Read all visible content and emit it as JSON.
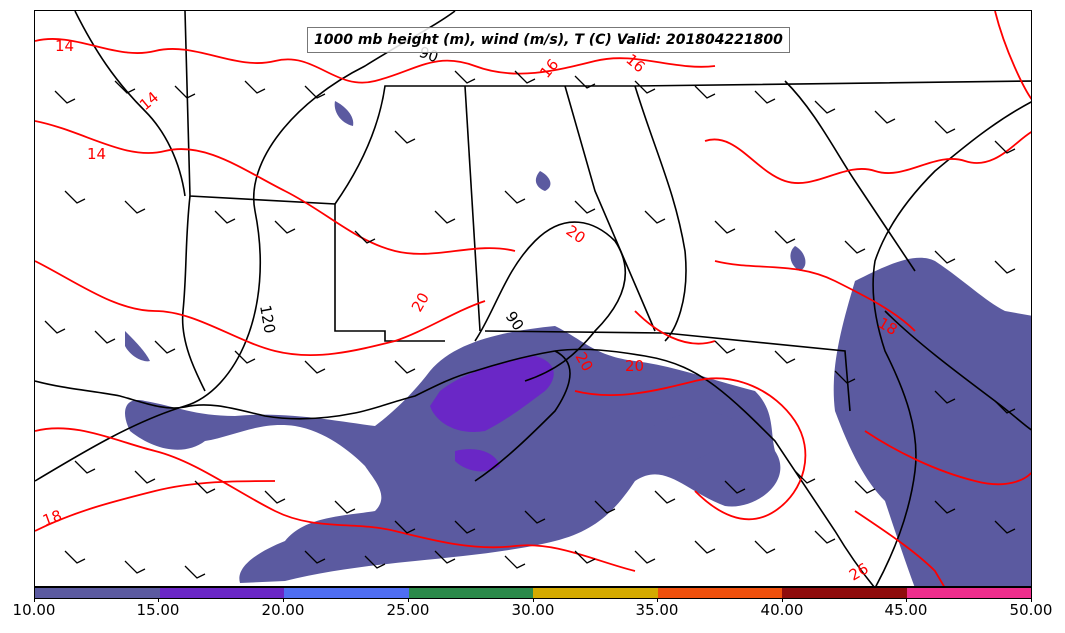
{
  "title": "1000 mb height (m), wind (m/s), T (C) Valid: 201804221800",
  "colorbar": {
    "ticks": [
      "10.00",
      "15.00",
      "20.00",
      "25.00",
      "30.00",
      "35.00",
      "40.00",
      "45.00",
      "50.00"
    ],
    "colors": [
      "#5b5aa0",
      "#6a27c6",
      "#4f6ef2",
      "#2b8a4a",
      "#d4aa00",
      "#f0500c",
      "#8f0c0c",
      "#ee2d8c"
    ]
  },
  "contour_labels": {
    "temperature": [
      "14",
      "14",
      "14",
      "16",
      "16",
      "20",
      "20",
      "20",
      "18",
      "18",
      "26",
      "20"
    ],
    "height": [
      "90",
      "90",
      "120"
    ]
  },
  "colors": {
    "temperature": "#ff0000",
    "height": "#000000",
    "shade_main": "#5b5aa0",
    "shade_high": "#6a27c6"
  }
}
